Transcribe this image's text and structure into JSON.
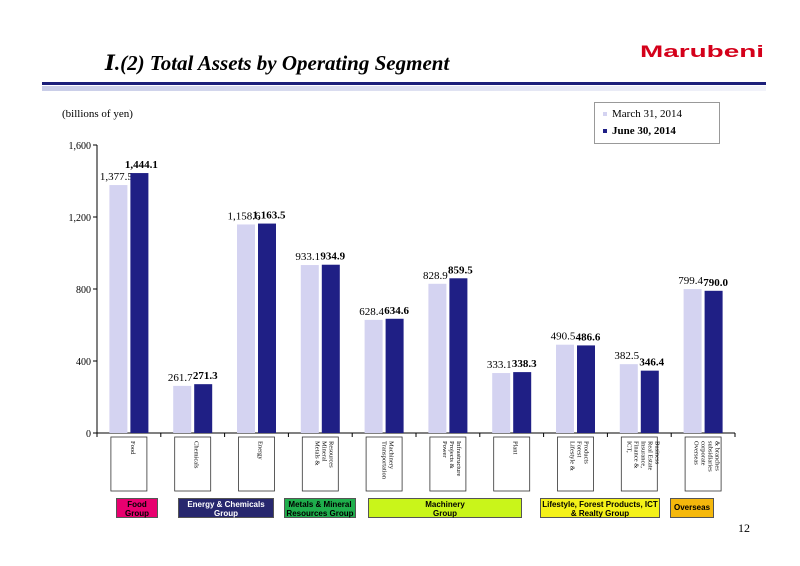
{
  "header": {
    "title": "Ⅰ.(2)  Total Assets by Operating Segment",
    "logo_text": "Marubeni"
  },
  "unit_label": "(billions of yen)",
  "legend": [
    {
      "label": "March 31, 2014",
      "color": "#d4d3f1"
    },
    {
      "label": "June 30, 2014",
      "color": "#1f1f85"
    }
  ],
  "chart_data": {
    "type": "bar",
    "categories": [
      "Food",
      "Chemicals",
      "Energy",
      "Metals & Mineral Resources",
      "Transportation Machinery",
      "Power Projects & Infrastructure",
      "Plant",
      "Lifestyle & Forest Products",
      "ICT, Finance & Insurance, Real Estate Business",
      "Overseas corporate subsidiaries & branches"
    ],
    "series": [
      {
        "name": "March 31, 2014",
        "values": [
          1377.5,
          261.7,
          1158.6,
          933.1,
          628.4,
          828.9,
          333.1,
          490.5,
          382.5,
          799.4
        ]
      },
      {
        "name": "June 30, 2014",
        "values": [
          1444.1,
          271.3,
          1163.5,
          934.9,
          634.6,
          859.5,
          338.3,
          486.6,
          346.4,
          790.0
        ]
      }
    ],
    "value_labels": [
      [
        "1,377.5",
        "261.7",
        "1,158.6",
        "933.1",
        "628.4",
        "828.9",
        "333.1",
        "490.5",
        "382.5",
        "799.4"
      ],
      [
        "1,444.1",
        "271.3",
        "1,163.5",
        "934.9",
        "634.6",
        "859.5",
        "338.3",
        "486.6",
        "346.4",
        "790.0"
      ]
    ],
    "yticks": [
      "0",
      "400",
      "800",
      "1,200",
      "1,600"
    ],
    "ytick_values": [
      0,
      400,
      800,
      1200,
      1600
    ],
    "ylim": [
      0,
      1600
    ],
    "title": "",
    "xlabel": "",
    "ylabel": "",
    "grid": false,
    "legend_position": "top-right"
  },
  "groups": [
    {
      "label": "Food\nGroup",
      "color": "#e8006f",
      "text_color": "#000000"
    },
    {
      "label": "Energy & Chemicals\nGroup",
      "color": "#27276e",
      "text_color": "#ffffff"
    },
    {
      "label": "Metals & Mineral\nResources Group",
      "color": "#1fae4c",
      "text_color": "#000000"
    },
    {
      "label": "Machinery\nGroup",
      "color": "#c9f51a",
      "text_color": "#000000"
    },
    {
      "label": "Lifestyle, Forest Products, ICT\n& Realty Group",
      "color": "#f4f119",
      "text_color": "#000000"
    },
    {
      "label": "Overseas",
      "color": "#f5b80c",
      "text_color": "#000000"
    }
  ],
  "page_number": "12"
}
